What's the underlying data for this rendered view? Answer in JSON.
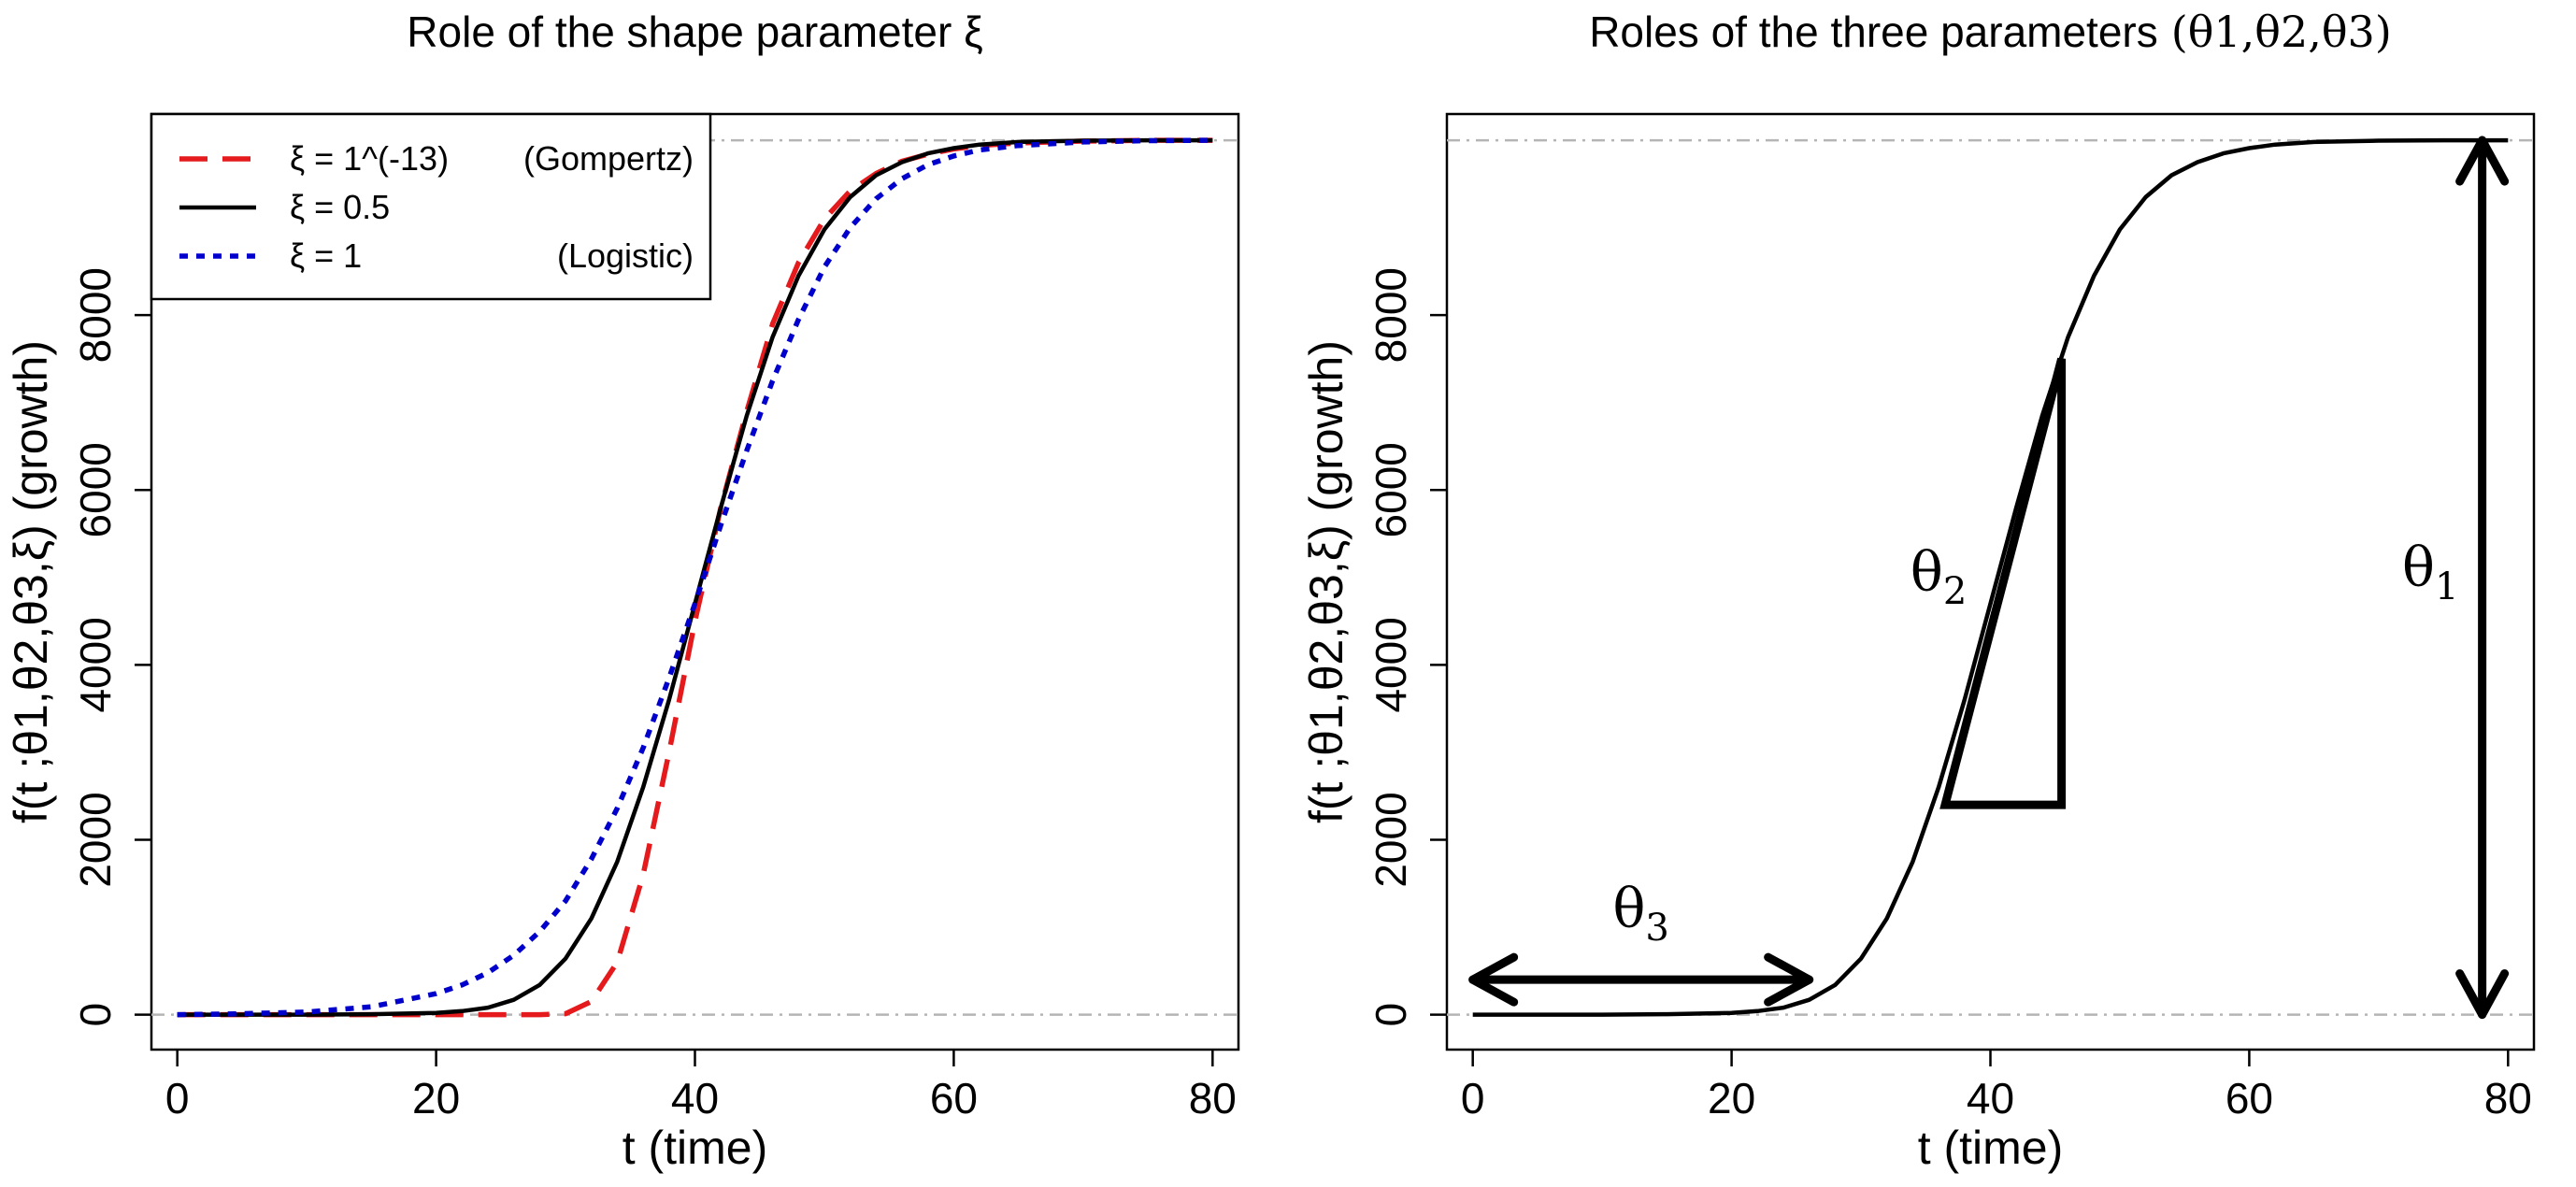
{
  "chart_data": [
    {
      "type": "line",
      "title": "Role of the shape parameter ξ",
      "xlabel": "t (time)",
      "ylabel": "f(t ;θ1,θ2,θ3,ξ) (growth)",
      "xlim": [
        -2,
        82
      ],
      "ylim": [
        -400,
        10300
      ],
      "x_ticks": [
        0,
        20,
        40,
        60,
        80
      ],
      "y_ticks": [
        0,
        2000,
        4000,
        6000,
        8000
      ],
      "x_tick_labels": [
        "0",
        "20",
        "40",
        "60",
        "80"
      ],
      "y_tick_labels": [
        "0",
        "2000",
        "4000",
        "6000",
        "8000"
      ],
      "reference_lines": [
        0,
        10000
      ],
      "legend": {
        "position": "top-left"
      },
      "x": [
        0,
        5,
        10,
        15,
        20,
        22,
        24,
        26,
        28,
        30,
        32,
        34,
        36,
        38,
        40,
        42,
        44,
        46,
        48,
        50,
        52,
        54,
        56,
        58,
        60,
        62,
        65,
        70,
        75,
        80
      ],
      "series": [
        {
          "name": "ξ = 1^(-13)",
          "note": "(Gompertz)",
          "color": "#e41a1c",
          "dash": "dashed",
          "values": [
            0,
            0,
            0,
            0,
            0,
            0,
            0,
            0,
            0,
            10,
            150,
            600,
            1600,
            3000,
            4500,
            5800,
            6900,
            7900,
            8600,
            9100,
            9420,
            9620,
            9760,
            9840,
            9900,
            9940,
            9970,
            9990,
            10000,
            10000
          ]
        },
        {
          "name": "ξ = 0.5",
          "note": "",
          "color": "#000000",
          "dash": "solid",
          "values": [
            0,
            0,
            0,
            5,
            20,
            40,
            80,
            170,
            340,
            640,
            1100,
            1750,
            2600,
            3600,
            4700,
            5800,
            6850,
            7750,
            8450,
            8980,
            9350,
            9600,
            9750,
            9850,
            9910,
            9950,
            9980,
            9995,
            10000,
            10000
          ]
        },
        {
          "name": "ξ = 1",
          "note": "(Logistic)",
          "color": "#0000cc",
          "dash": "dotted",
          "values": [
            0,
            10,
            30,
            90,
            240,
            340,
            480,
            680,
            950,
            1300,
            1780,
            2360,
            3050,
            3850,
            4700,
            5600,
            6450,
            7250,
            7950,
            8550,
            9000,
            9330,
            9560,
            9720,
            9820,
            9890,
            9940,
            9980,
            9995,
            10000
          ]
        }
      ]
    },
    {
      "type": "line",
      "title": "Roles of the three parameters",
      "title_math": "(θ1,θ2,θ3)",
      "xlabel": "t (time)",
      "ylabel": "f(t ;θ1,θ2,θ3,ξ) (growth)",
      "xlim": [
        -2,
        82
      ],
      "ylim": [
        -400,
        10300
      ],
      "x_ticks": [
        0,
        20,
        40,
        60,
        80
      ],
      "y_ticks": [
        0,
        2000,
        4000,
        6000,
        8000
      ],
      "x_tick_labels": [
        "0",
        "20",
        "40",
        "60",
        "80"
      ],
      "y_tick_labels": [
        "0",
        "2000",
        "4000",
        "6000",
        "8000"
      ],
      "reference_lines": [
        0,
        10000
      ],
      "x": [
        0,
        5,
        10,
        15,
        20,
        22,
        24,
        26,
        28,
        30,
        32,
        34,
        36,
        38,
        40,
        42,
        44,
        46,
        48,
        50,
        52,
        54,
        56,
        58,
        60,
        62,
        65,
        70,
        75,
        80
      ],
      "series": [
        {
          "color": "#000000",
          "dash": "solid",
          "values": [
            0,
            0,
            0,
            5,
            20,
            40,
            80,
            170,
            340,
            640,
            1100,
            1750,
            2600,
            3600,
            4700,
            5800,
            6850,
            7750,
            8450,
            8980,
            9350,
            9600,
            9750,
            9850,
            9910,
            9950,
            9980,
            9995,
            10000,
            10000
          ]
        }
      ],
      "annotations": {
        "theta1": {
          "label": "θ",
          "sub": "1",
          "x": 78,
          "from_y": 0,
          "to_y": 10000,
          "label_x": 74,
          "label_y": 4900
        },
        "theta2": {
          "label": "θ",
          "sub": "2",
          "triangle": [
            [
              36.5,
              2400
            ],
            [
              45.5,
              7500
            ],
            [
              45.5,
              2400
            ]
          ],
          "label_x": 36,
          "label_y": 4850
        },
        "theta3": {
          "label": "θ",
          "sub": "3",
          "y": 400,
          "from_x": 0,
          "to_x": 26,
          "label_x": 13,
          "label_y": 1000
        }
      }
    }
  ]
}
